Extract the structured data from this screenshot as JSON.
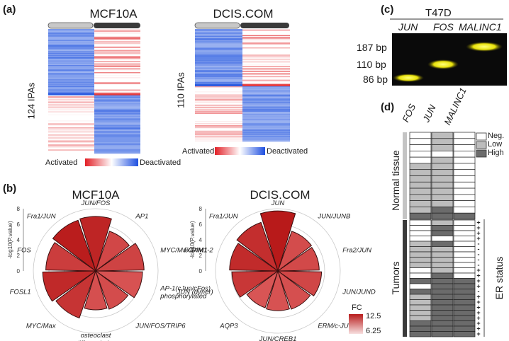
{
  "panel_a": {
    "label": "(a)",
    "heatmaps": [
      {
        "title": "MCF10A",
        "ylabel": "124 IPAs"
      },
      {
        "title": "DCIS.COM",
        "ylabel": "110 IPAs"
      }
    ],
    "legend": {
      "left": "Activated",
      "right": "Deactivated"
    },
    "colors": {
      "activated": "#e0262a",
      "deactivated": "#2a5be0"
    }
  },
  "panel_b": {
    "label": "(b)",
    "legend_title": "FC",
    "legend_max": "12.5",
    "legend_min": "6.25",
    "charts": [
      {
        "title": "MCF10A",
        "axis_label": "-log10(P.value)",
        "ticks": [
          "0",
          "2",
          "4",
          "6",
          "8"
        ],
        "categories": [
          "JUN/FOS",
          "AP1",
          "MYC/Max/PIM1",
          "AP-1(cJun/cFos)\nphosphorylated",
          "JUN/FOS/TRIP6",
          "osteoclast\ndifferentiation",
          "MYC/Max",
          "FOSL1",
          "FOS",
          "Fra1/JUN"
        ],
        "values": [
          7.0,
          5.4,
          6.2,
          6.0,
          5.2,
          5.0,
          6.4,
          6.8,
          6.4,
          6.9
        ],
        "fc": [
          11.8,
          9.5,
          9.8,
          8.8,
          9.2,
          9.0,
          10.8,
          11.5,
          10.2,
          12.3
        ]
      },
      {
        "title": "DCIS.COM",
        "axis_label": "-log10(P.value)",
        "ticks": [
          "0",
          "2",
          "4",
          "6",
          "8"
        ],
        "categories": [
          "JUN",
          "JUN/JUNB",
          "Fra2/JUN",
          "JUN/JUND",
          "ERM/c-JUN",
          "JUN/CREB1",
          "AQP3",
          "JUN (dimer)",
          "FOXM1-2",
          "Fra1/JUN"
        ],
        "values": [
          7.7,
          5.4,
          5.3,
          5.6,
          5.2,
          5.1,
          5.0,
          5.9,
          6.2,
          6.6
        ],
        "fc": [
          12.5,
          9.2,
          9.4,
          9.6,
          9.0,
          8.8,
          8.6,
          10.6,
          11.4,
          11.2
        ]
      }
    ]
  },
  "panel_c": {
    "label": "(c)",
    "title": "T47D",
    "lanes": [
      "JUN",
      "FOS",
      "MALINC1"
    ],
    "markers": [
      "187 bp",
      "110 bp",
      "86 bp"
    ]
  },
  "panel_d": {
    "label": "(d)",
    "columns": [
      "FOS",
      "JUN",
      "MALINC1"
    ],
    "groups": [
      "Normal tissue",
      "Tumors"
    ],
    "side_label": "ER status",
    "legend": [
      "Neg.",
      "Low",
      "High"
    ],
    "colors": {
      "neg": "#ffffff",
      "low": "#bdbdbd",
      "high": "#6b6b6b"
    },
    "normal_rows": [
      [
        0,
        1,
        0
      ],
      [
        0,
        1,
        0
      ],
      [
        0,
        1,
        0
      ],
      [
        0,
        0,
        0
      ],
      [
        0,
        1,
        0
      ],
      [
        1,
        1,
        0
      ],
      [
        1,
        1,
        0
      ],
      [
        1,
        1,
        0
      ],
      [
        1,
        1,
        0
      ],
      [
        1,
        1,
        0
      ],
      [
        1,
        1,
        0
      ],
      [
        1,
        1,
        0
      ],
      [
        1,
        2,
        0
      ],
      [
        2,
        2,
        2
      ]
    ],
    "tumor_rows": [
      [
        0,
        1,
        0
      ],
      [
        0,
        2,
        0
      ],
      [
        0,
        2,
        0
      ],
      [
        0,
        0,
        0
      ],
      [
        1,
        2,
        0
      ],
      [
        1,
        1,
        0
      ],
      [
        1,
        1,
        0
      ],
      [
        1,
        1,
        0
      ],
      [
        1,
        1,
        0
      ],
      [
        0,
        1,
        0
      ],
      [
        0,
        2,
        0
      ],
      [
        2,
        2,
        2
      ],
      [
        0,
        2,
        2
      ],
      [
        2,
        2,
        2
      ],
      [
        1,
        2,
        2
      ],
      [
        1,
        2,
        2
      ],
      [
        1,
        2,
        2
      ],
      [
        1,
        2,
        2
      ],
      [
        1,
        2,
        2
      ],
      [
        2,
        2,
        2
      ],
      [
        2,
        2,
        2
      ],
      [
        2,
        2,
        2
      ]
    ],
    "er_status": [
      "+",
      "+",
      "+",
      "+",
      "-",
      "-",
      "-",
      "-",
      "-",
      "+",
      "+",
      "+",
      "+",
      "-",
      "+",
      "+",
      "+",
      "+",
      "+",
      "+",
      "+",
      "+"
    ]
  }
}
